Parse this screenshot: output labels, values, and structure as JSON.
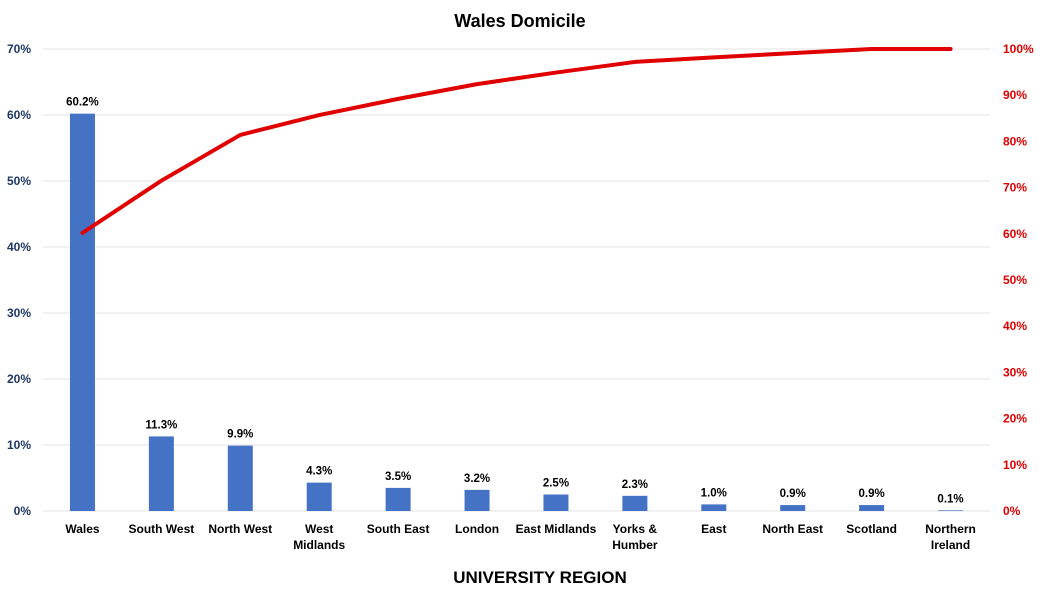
{
  "chart_data": {
    "type": "bar",
    "title": "Wales Domicile",
    "xlabel": "UNIVERSITY REGION",
    "categories": [
      [
        "Wales"
      ],
      [
        "South West"
      ],
      [
        "North West"
      ],
      [
        "West",
        "Midlands"
      ],
      [
        "South East"
      ],
      [
        "London"
      ],
      [
        "East Midlands"
      ],
      [
        "Yorks &",
        "Humber"
      ],
      [
        "East"
      ],
      [
        "North East"
      ],
      [
        "Scotland"
      ],
      [
        "Northern",
        "Ireland"
      ]
    ],
    "series": [
      {
        "type": "bar",
        "axis": "left",
        "values": [
          60.2,
          11.3,
          9.9,
          4.3,
          3.5,
          3.2,
          2.5,
          2.3,
          1.0,
          0.9,
          0.9,
          0.1
        ],
        "labels": [
          "60.2%",
          "11.3%",
          "9.9%",
          "4.3%",
          "3.5%",
          "3.2%",
          "2.5%",
          "2.3%",
          "1.0%",
          "0.9%",
          "0.9%",
          "0.1%"
        ],
        "color": "#4472c4"
      },
      {
        "type": "line",
        "axis": "right",
        "values": [
          60.2,
          71.5,
          81.4,
          85.7,
          89.2,
          92.4,
          94.9,
          97.2,
          98.2,
          99.1,
          100.0,
          100.1
        ],
        "color": "#e00000"
      }
    ],
    "y_left": {
      "range": [
        0,
        70
      ],
      "ticks": [
        "0%",
        "10%",
        "20%",
        "30%",
        "40%",
        "50%",
        "60%",
        "70%"
      ],
      "color": "#1f3864"
    },
    "y_right": {
      "range": [
        0,
        100
      ],
      "ticks": [
        "0%",
        "10%",
        "20%",
        "30%",
        "40%",
        "50%",
        "60%",
        "70%",
        "80%",
        "90%",
        "100%"
      ],
      "color": "#e00000"
    },
    "grid": true,
    "legend": "none"
  }
}
